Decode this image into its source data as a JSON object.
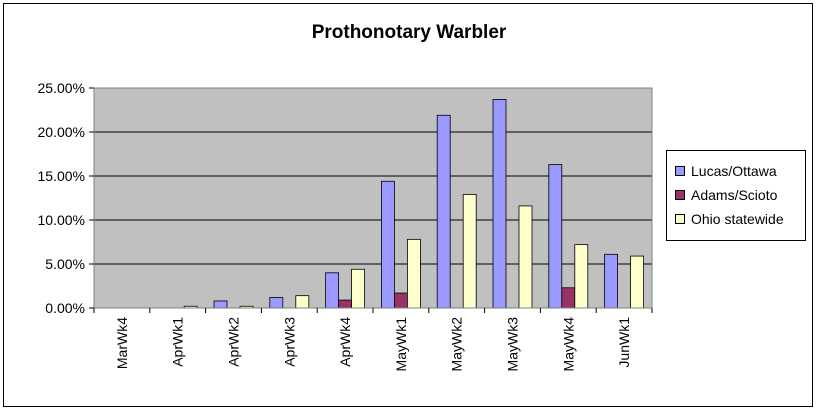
{
  "chart_data": {
    "type": "bar",
    "title": "Prothonotary Warbler",
    "xlabel": "",
    "ylabel": "",
    "categories": [
      "MarWk4",
      "AprWk1",
      "AprWk2",
      "AprWk3",
      "AprWk4",
      "MayWk1",
      "MayWk2",
      "MayWk3",
      "MayWk4",
      "JunWk1"
    ],
    "series": [
      {
        "name": "Lucas/Ottawa",
        "color": "#9999ff",
        "values": [
          0,
          0,
          0.8,
          1.2,
          4.0,
          14.4,
          21.9,
          23.7,
          16.3,
          6.1
        ]
      },
      {
        "name": "Adams/Scioto",
        "color": "#993366",
        "values": [
          0,
          0,
          0,
          0,
          0.9,
          1.7,
          0,
          0,
          2.3,
          0
        ]
      },
      {
        "name": "Ohio statewide",
        "color": "#ffffcc",
        "values": [
          0,
          0.2,
          0.2,
          1.4,
          4.4,
          7.8,
          12.9,
          11.6,
          7.2,
          5.9
        ]
      }
    ],
    "ylim": [
      0,
      25
    ],
    "yticks": [
      "0.00%",
      "5.00%",
      "10.00%",
      "15.00%",
      "20.00%",
      "25.00%"
    ],
    "ytick_values": [
      0,
      5,
      10,
      15,
      20,
      25
    ],
    "grid": true,
    "plot_background": "#c0c0c0",
    "legend_position": "right"
  }
}
